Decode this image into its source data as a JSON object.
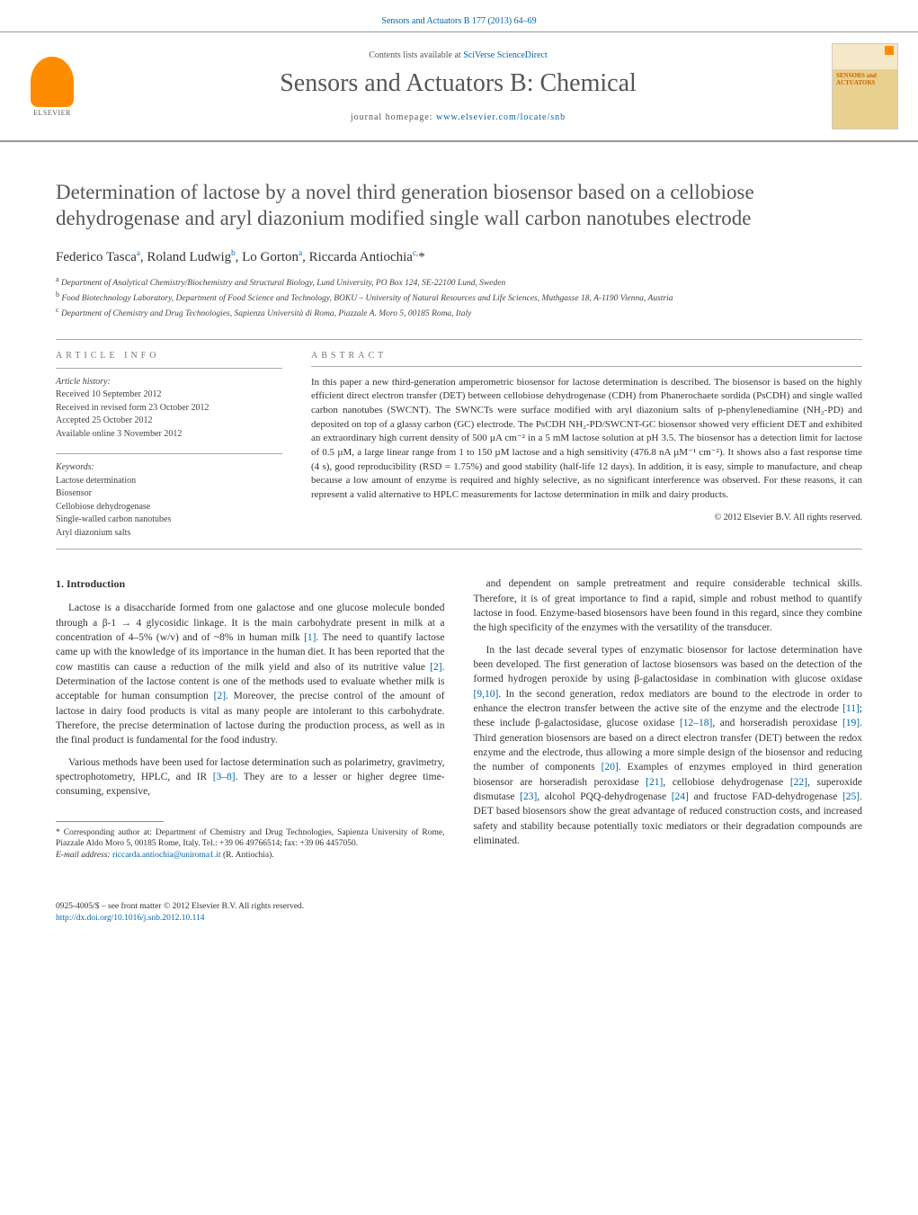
{
  "running_head": "Sensors and Actuators B 177 (2013) 64–69",
  "masthead": {
    "contents_prefix": "Contents lists available at ",
    "contents_link": "SciVerse ScienceDirect",
    "journal_title": "Sensors and Actuators B: Chemical",
    "homepage_prefix": "journal homepage: ",
    "homepage_url": "www.elsevier.com/locate/snb",
    "elsevier_label": "ELSEVIER",
    "cover_label_1": "SENSORS and",
    "cover_label_2": "ACTUATORS"
  },
  "article": {
    "title": "Determination of lactose by a novel third generation biosensor based on a cellobiose dehydrogenase and aryl diazonium modified single wall carbon nanotubes electrode",
    "authors_html": "Federico Tasca<sup>a</sup>, Roland Ludwig<sup>b</sup>, Lo Gorton<sup>a</sup>, Riccarda Antiochia<sup>c,</sup>*",
    "affiliations": [
      "a Department of Analytical Chemistry/Biochemistry and Structural Biology, Lund University, PO Box 124, SE-22100 Lund, Sweden",
      "b Food Biotechnology Laboratory, Department of Food Science and Technology, BOKU – University of Natural Resources and Life Sciences, Muthgasse 18, A-1190 Vienna, Austria",
      "c Department of Chemistry and Drug Technologies, Sapienza Università di Roma, Piazzale A. Moro 5, 00185 Roma, Italy"
    ]
  },
  "info": {
    "article_info_label": "article info",
    "abstract_label": "abstract",
    "history_label": "Article history:",
    "history": [
      "Received 10 September 2012",
      "Received in revised form 23 October 2012",
      "Accepted 25 October 2012",
      "Available online 3 November 2012"
    ],
    "keywords_label": "Keywords:",
    "keywords": [
      "Lactose determination",
      "Biosensor",
      "Cellobiose dehydrogenase",
      "Single-walled carbon nanotubes",
      "Aryl diazonium salts"
    ],
    "abstract": "In this paper a new third-generation amperometric biosensor for lactose determination is described. The biosensor is based on the highly efficient direct electron transfer (DET) between cellobiose dehydrogenase (CDH) from Phanerochaete sordida (PsCDH) and single walled carbon nanotubes (SWCNT). The SWNCTs were surface modified with aryl diazonium salts of p-phenylenediamine (NH₂-PD) and deposited on top of a glassy carbon (GC) electrode. The PsCDH NH₂-PD/SWCNT-GC biosensor showed very efficient DET and exhibited an extraordinary high current density of 500 µA cm⁻² in a 5 mM lactose solution at pH 3.5. The biosensor has a detection limit for lactose of 0.5 µM, a large linear range from 1 to 150 µM lactose and a high sensitivity (476.8 nA µM⁻¹ cm⁻²). It shows also a fast response time (4 s), good reproducibility (RSD = 1.75%) and good stability (half-life 12 days). In addition, it is easy, simple to manufacture, and cheap because a low amount of enzyme is required and highly selective, as no significant interference was observed. For these reasons, it can represent a valid alternative to HPLC measurements for lactose determination in milk and dairy products.",
    "copyright": "© 2012 Elsevier B.V. All rights reserved."
  },
  "body": {
    "section_heading": "1. Introduction",
    "left_paras": [
      "Lactose is a disaccharide formed from one galactose and one glucose molecule bonded through a β-1 → 4 glycosidic linkage. It is the main carbohydrate present in milk at a concentration of 4–5% (w/v) and of ~8% in human milk [1]. The need to quantify lactose came up with the knowledge of its importance in the human diet. It has been reported that the cow mastitis can cause a reduction of the milk yield and also of its nutritive value [2]. Determination of the lactose content is one of the methods used to evaluate whether milk is acceptable for human consumption [2]. Moreover, the precise control of the amount of lactose in dairy food products is vital as many people are intolerant to this carbohydrate. Therefore, the precise determination of lactose during the production process, as well as in the final product is fundamental for the food industry.",
      "Various methods have been used for lactose determination such as polarimetry, gravimetry, spectrophotometry, HPLC, and IR [3–8]. They are to a lesser or higher degree time-consuming, expensive,"
    ],
    "right_paras": [
      "and dependent on sample pretreatment and require considerable technical skills. Therefore, it is of great importance to find a rapid, simple and robust method to quantify lactose in food. Enzyme-based biosensors have been found in this regard, since they combine the high specificity of the enzymes with the versatility of the transducer.",
      "In the last decade several types of enzymatic biosensor for lactose determination have been developed. The first generation of lactose biosensors was based on the detection of the formed hydrogen peroxide by using β-galactosidase in combination with glucose oxidase [9,10]. In the second generation, redox mediators are bound to the electrode in order to enhance the electron transfer between the active site of the enzyme and the electrode [11]; these include β-galactosidase, glucose oxidase [12–18], and horseradish peroxidase [19]. Third generation biosensors are based on a direct electron transfer (DET) between the redox enzyme and the electrode, thus allowing a more simple design of the biosensor and reducing the number of components [20]. Examples of enzymes employed in third generation biosensor are horseradish peroxidase [21], cellobiose dehydrogenase [22], superoxide dismutase [23], alcohol PQQ-dehydrogenase [24] and fructose FAD-dehydrogenase [25]. DET based biosensors show the great advantage of reduced construction costs, and increased safety and stability because potentially toxic mediators or their degradation compounds are eliminated."
    ]
  },
  "footnote": {
    "corresponding": "* Corresponding author at: Department of Chemistry and Drug Technologies, Sapienza University of Rome, Piazzale Aldo Moro 5, 00185 Rome, Italy. Tel.: +39 06 49766514; fax: +39 06 4457050.",
    "email_label": "E-mail address: ",
    "email": "riccarda.antiochia@uniroma1.it",
    "email_suffix": " (R. Antiochia)."
  },
  "footer": {
    "line1": "0925-4005/$ – see front matter © 2012 Elsevier B.V. All rights reserved.",
    "doi": "http://dx.doi.org/10.1016/j.snb.2012.10.114"
  },
  "colors": {
    "link": "#0066aa",
    "elsevier_orange": "#ff8c00",
    "text_muted": "#555"
  }
}
